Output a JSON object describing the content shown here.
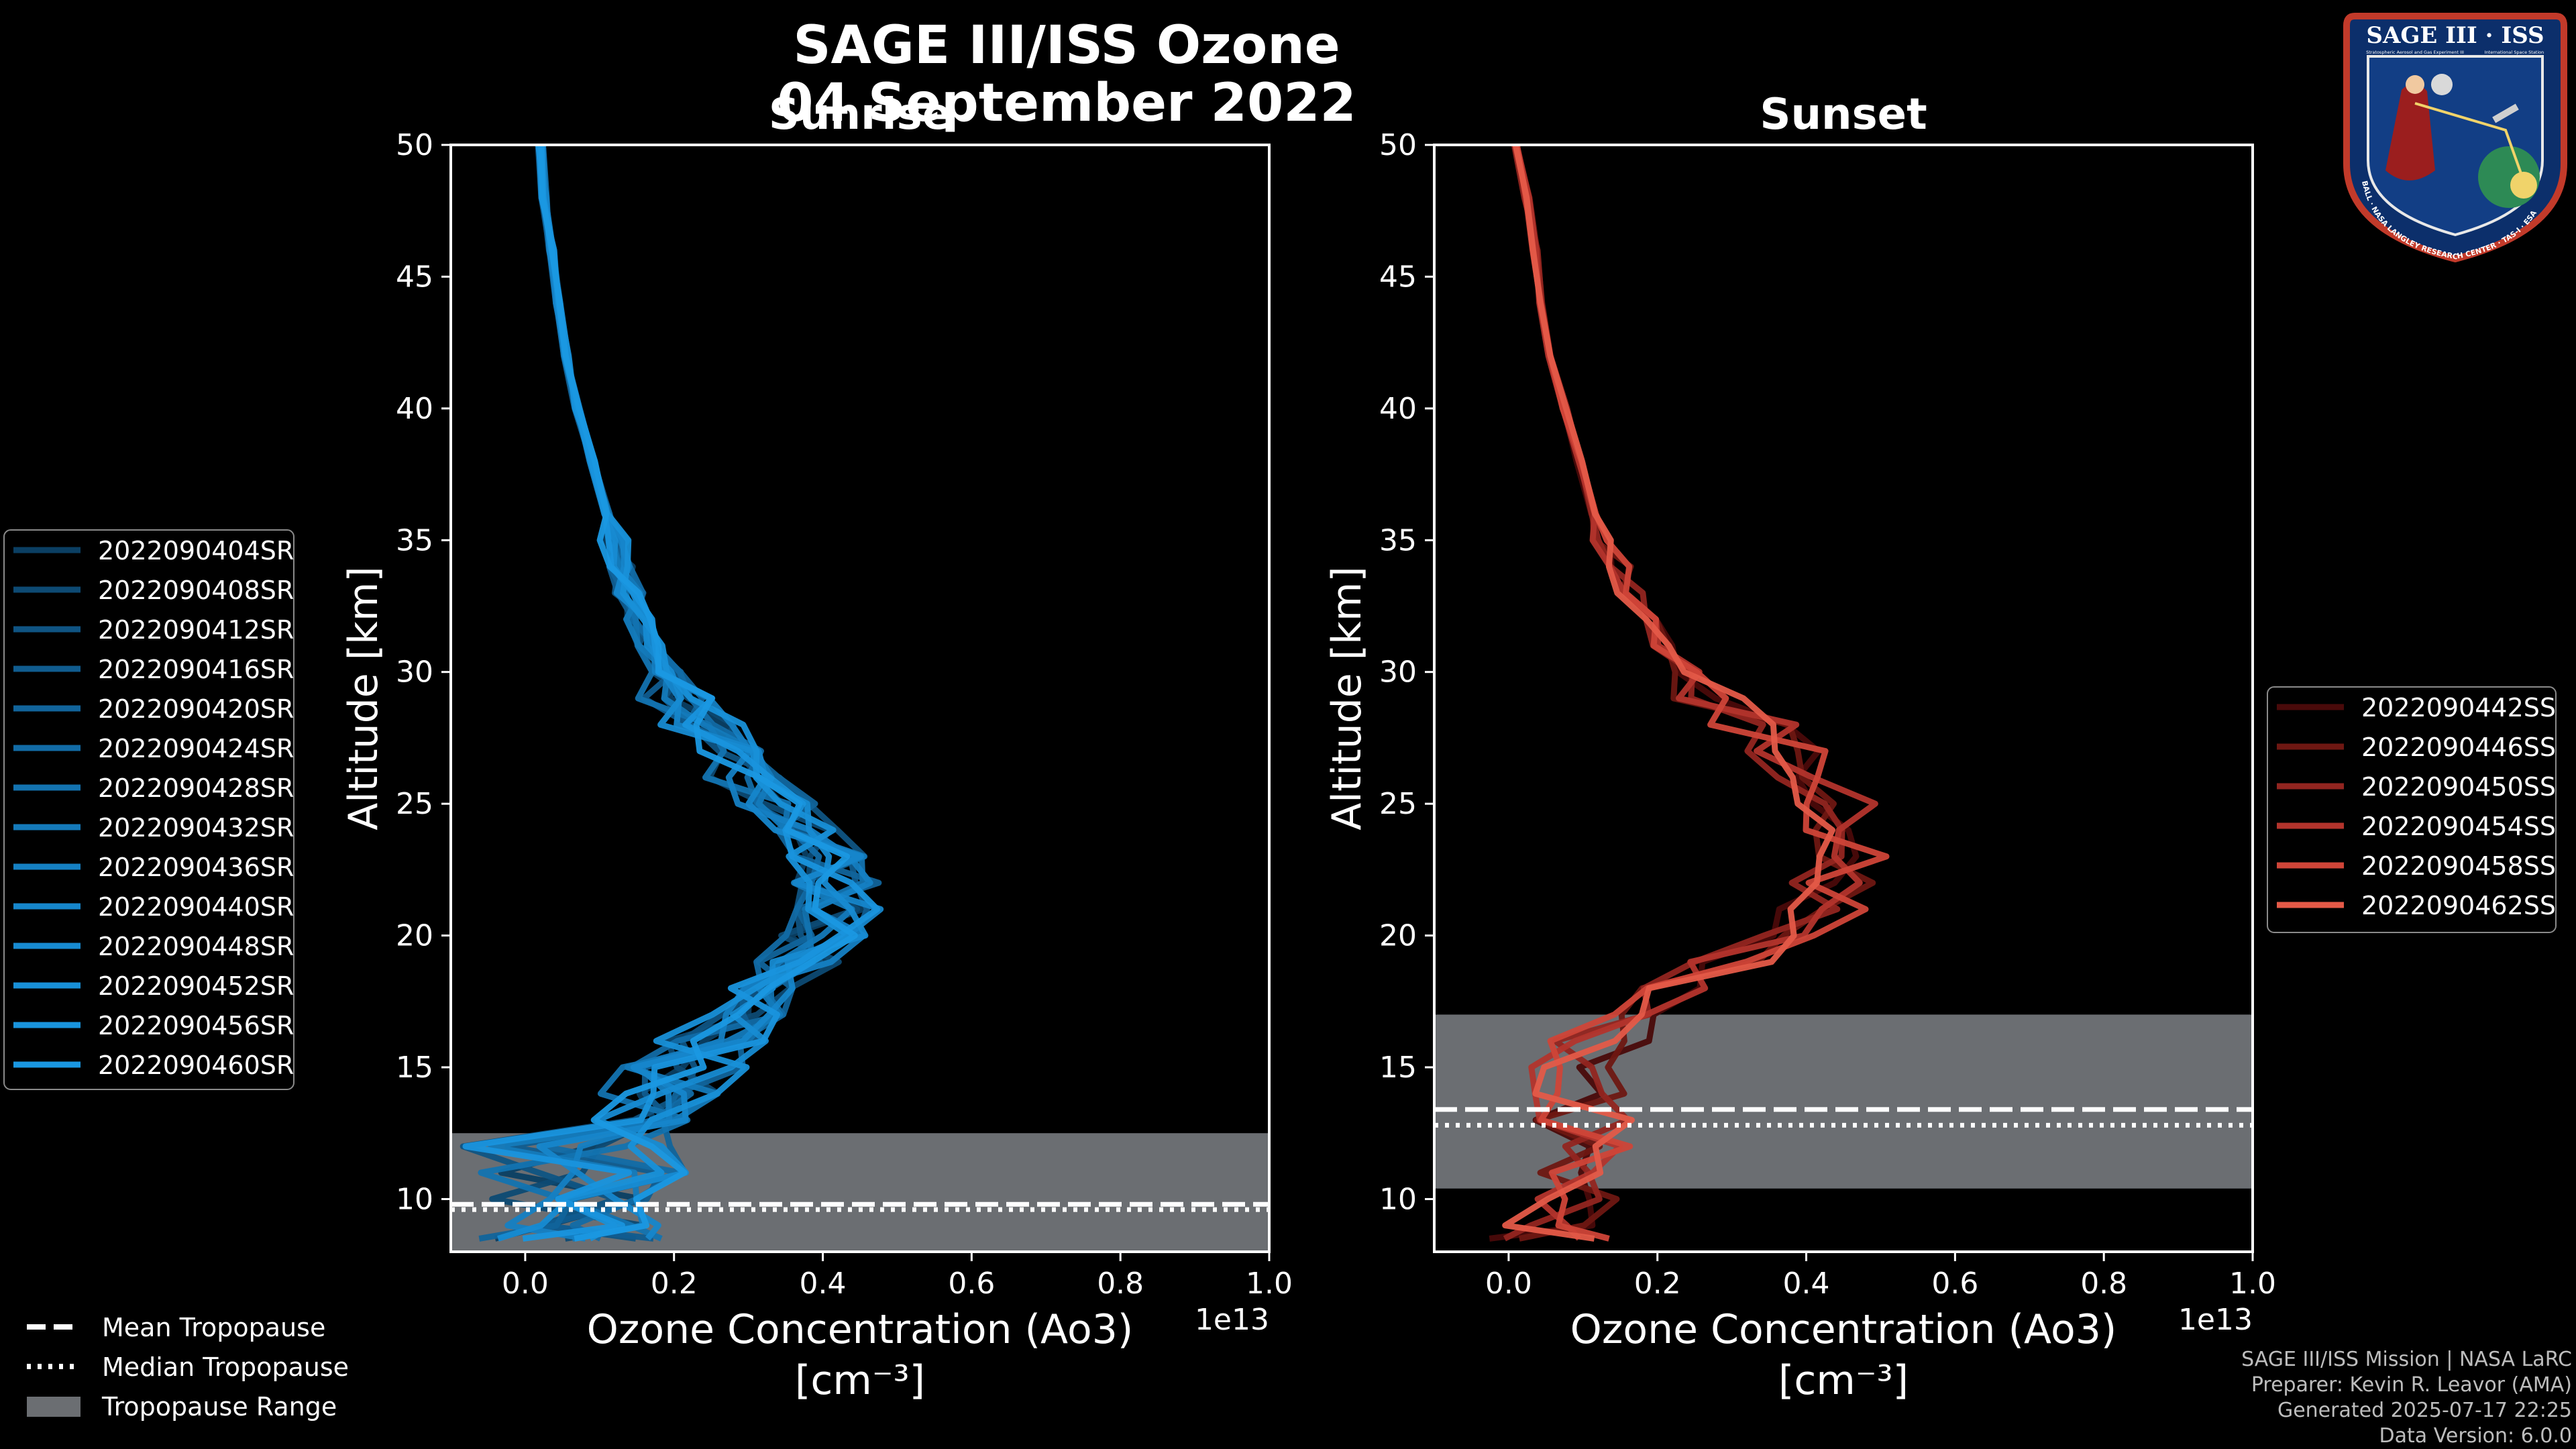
{
  "title_line1": "SAGE III/ISS Ozone",
  "title_line2": "04 September 2022",
  "colors": {
    "background": "#000000",
    "sunrise": "#1a8fd6",
    "sunset": "#e2574a",
    "tropo_fill": "#6b6e72",
    "text": "#ffffff",
    "credit": "#bdbdbd"
  },
  "chart_data": [
    {
      "type": "line",
      "panel": "sunrise",
      "title": "Sunrise",
      "xlabel_line1": "Ozone Concentration (Ao3)",
      "xlabel_line2": "[cm⁻³]",
      "ylabel": "Altitude [km]",
      "xlim": [
        -0.1,
        1.0
      ],
      "ylim": [
        8,
        50
      ],
      "x_scale_label": "1e13",
      "xticks": [
        0.0,
        0.2,
        0.4,
        0.6,
        0.8,
        1.0
      ],
      "xtick_labels": [
        "0.0",
        "0.2",
        "0.4",
        "0.6",
        "0.8",
        "1.0"
      ],
      "yticks": [
        10,
        15,
        20,
        25,
        30,
        35,
        40,
        45,
        50
      ],
      "ytick_labels": [
        "10",
        "15",
        "20",
        "25",
        "30",
        "35",
        "40",
        "45",
        "50"
      ],
      "tropopause": {
        "mean": 9.8,
        "median": 9.6,
        "range": [
          8.0,
          12.5
        ]
      },
      "alt": [
        8.5,
        9,
        10,
        11,
        12,
        13,
        14,
        15,
        16,
        17,
        18,
        19,
        20,
        21,
        22,
        23,
        24,
        25,
        26,
        27,
        28,
        29,
        30,
        31,
        32,
        33,
        34,
        35,
        36,
        38,
        40,
        42,
        44,
        46,
        48,
        50
      ],
      "base_profile": [
        0.1,
        0.1,
        0.11,
        0.13,
        0.15,
        0.17,
        0.19,
        0.22,
        0.25,
        0.29,
        0.33,
        0.37,
        0.4,
        0.42,
        0.42,
        0.4,
        0.37,
        0.34,
        0.3,
        0.27,
        0.24,
        0.21,
        0.19,
        0.17,
        0.155,
        0.14,
        0.13,
        0.12,
        0.11,
        0.09,
        0.07,
        0.055,
        0.045,
        0.035,
        0.025,
        0.02
      ],
      "series": [
        {
          "name": "2022090404SR",
          "color": "#0b3f63"
        },
        {
          "name": "2022090408SR",
          "color": "#0d4a73"
        },
        {
          "name": "2022090412SR",
          "color": "#0f5483"
        },
        {
          "name": "2022090416SR",
          "color": "#105c8f"
        },
        {
          "name": "2022090420SR",
          "color": "#11649b"
        },
        {
          "name": "2022090424SR",
          "color": "#126ca6"
        },
        {
          "name": "2022090428SR",
          "color": "#1373b0"
        },
        {
          "name": "2022090432SR",
          "color": "#147aba"
        },
        {
          "name": "2022090436SR",
          "color": "#1580c3"
        },
        {
          "name": "2022090440SR",
          "color": "#1686cb"
        },
        {
          "name": "2022090448SR",
          "color": "#178bd2"
        },
        {
          "name": "2022090452SR",
          "color": "#1890d8"
        },
        {
          "name": "2022090456SR",
          "color": "#1994dd"
        },
        {
          "name": "2022090460SR",
          "color": "#1a98e2"
        }
      ]
    },
    {
      "type": "line",
      "panel": "sunset",
      "title": "Sunset",
      "xlabel_line1": "Ozone Concentration (Ao3)",
      "xlabel_line2": "[cm⁻³]",
      "ylabel": "Altitude [km]",
      "xlim": [
        -0.1,
        1.0
      ],
      "ylim": [
        8,
        50
      ],
      "x_scale_label": "1e13",
      "xticks": [
        0.0,
        0.2,
        0.4,
        0.6,
        0.8,
        1.0
      ],
      "xtick_labels": [
        "0.0",
        "0.2",
        "0.4",
        "0.6",
        "0.8",
        "1.0"
      ],
      "yticks": [
        10,
        15,
        20,
        25,
        30,
        35,
        40,
        45,
        50
      ],
      "ytick_labels": [
        "10",
        "15",
        "20",
        "25",
        "30",
        "35",
        "40",
        "45",
        "50"
      ],
      "tropopause": {
        "mean": 13.4,
        "median": 12.8,
        "range": [
          10.4,
          17.0
        ]
      },
      "alt": [
        8.5,
        9,
        10,
        11,
        12,
        13,
        14,
        15,
        16,
        17,
        18,
        19,
        20,
        21,
        22,
        23,
        24,
        25,
        26,
        27,
        28,
        29,
        30,
        31,
        32,
        33,
        34,
        35,
        36,
        38,
        40,
        42,
        44,
        46,
        48,
        50
      ],
      "base_profile": [
        0.05,
        0.06,
        0.07,
        0.08,
        0.09,
        0.09,
        0.09,
        0.1,
        0.12,
        0.16,
        0.22,
        0.3,
        0.38,
        0.42,
        0.44,
        0.45,
        0.45,
        0.44,
        0.42,
        0.38,
        0.33,
        0.28,
        0.24,
        0.21,
        0.185,
        0.165,
        0.145,
        0.13,
        0.115,
        0.095,
        0.075,
        0.055,
        0.045,
        0.035,
        0.025,
        0.01
      ],
      "series": [
        {
          "name": "2022090442SS",
          "color": "#4a0a0a"
        },
        {
          "name": "2022090446SS",
          "color": "#6e1712"
        },
        {
          "name": "2022090450SS",
          "color": "#922520"
        },
        {
          "name": "2022090454SS",
          "color": "#b3342c"
        },
        {
          "name": "2022090458SS",
          "color": "#cf4538"
        },
        {
          "name": "2022090462SS",
          "color": "#e45a48"
        }
      ]
    }
  ],
  "tropo_legend": {
    "mean": "Mean Tropopause",
    "median": "Median Tropopause",
    "range": "Tropopause Range"
  },
  "credits": [
    "SAGE III/ISS Mission | NASA LaRC",
    "Preparer: Kevin R. Leavor (AMA)",
    "Generated 2025-07-17 22:25",
    "Data Version: 6.0.0"
  ],
  "logo": {
    "title": "SAGE III · ISS",
    "sub1": "Stratospheric Aerosol and Gas Experiment III",
    "sub2": "International Space Station",
    "ring": "BALL · NASA LANGLEY RESEARCH CENTER · TAS-I · ESA"
  }
}
